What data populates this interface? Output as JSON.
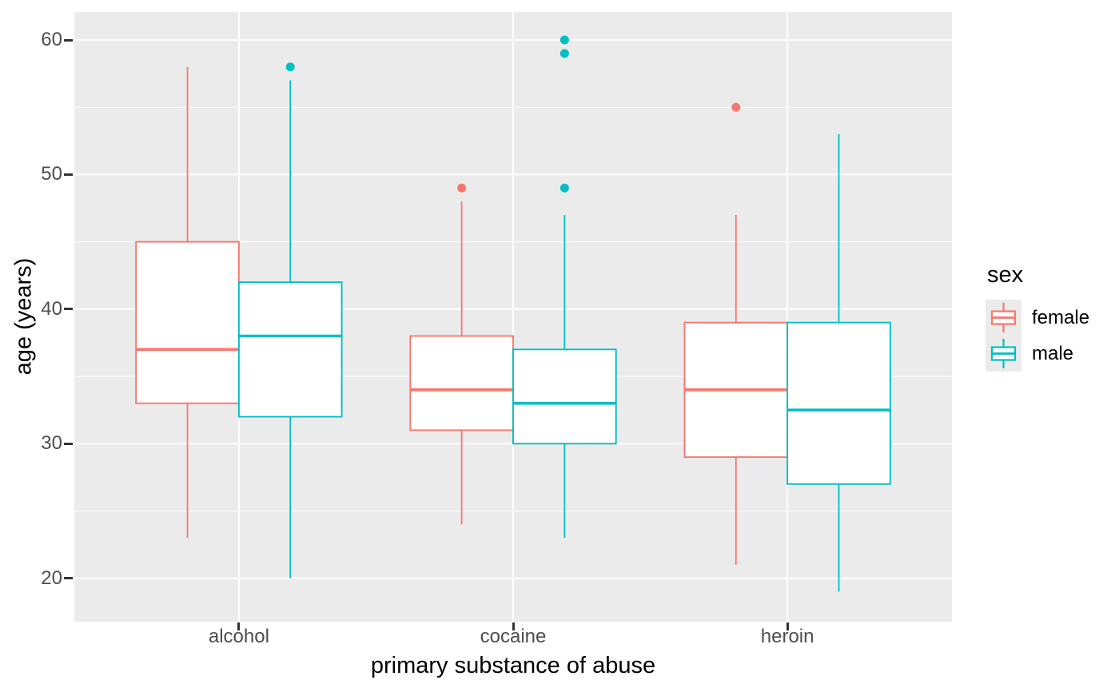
{
  "figure": {
    "background": "#ffffff",
    "panel_background": "#ebebeb",
    "grid_color": "#ffffff",
    "tick_color": "#333333",
    "tick_label_color": "#4d4d4d",
    "title_color": "#000000"
  },
  "legend": {
    "title": "sex",
    "entries": [
      {
        "label": "female",
        "color": "#F8766D"
      },
      {
        "label": "male",
        "color": "#00BFC4"
      }
    ]
  },
  "chart_data": {
    "type": "boxplot",
    "title": "",
    "xlabel": "primary substance of abuse",
    "ylabel": "age (years)",
    "categories": [
      "alcohol",
      "cocaine",
      "heroin"
    ],
    "ylim": [
      16.77,
      62.08
    ],
    "yticks": [
      20,
      30,
      40,
      50,
      60
    ],
    "yticks_minor": [
      25,
      35,
      45,
      55
    ],
    "grid": true,
    "legend_title": "sex",
    "legend_position": "right",
    "series": [
      {
        "name": "female",
        "color": "#F8766D",
        "boxes": [
          {
            "category": "alcohol",
            "min": 23,
            "q1": 33,
            "median": 37,
            "q3": 45,
            "max": 58,
            "outliers": []
          },
          {
            "category": "cocaine",
            "min": 24,
            "q1": 31,
            "median": 34,
            "q3": 38,
            "max": 48,
            "outliers": [
              49
            ]
          },
          {
            "category": "heroin",
            "min": 21,
            "q1": 29,
            "median": 34,
            "q3": 39,
            "max": 47,
            "outliers": [
              55
            ]
          }
        ]
      },
      {
        "name": "male",
        "color": "#00BFC4",
        "boxes": [
          {
            "category": "alcohol",
            "min": 20,
            "q1": 32,
            "median": 38,
            "q3": 42,
            "max": 57,
            "outliers": [
              58
            ]
          },
          {
            "category": "cocaine",
            "min": 23,
            "q1": 30,
            "median": 33,
            "q3": 37,
            "max": 47,
            "outliers": [
              49,
              59,
              60
            ]
          },
          {
            "category": "heroin",
            "min": 19,
            "q1": 27,
            "median": 32.5,
            "q3": 39,
            "max": 53,
            "outliers": []
          }
        ]
      }
    ]
  }
}
